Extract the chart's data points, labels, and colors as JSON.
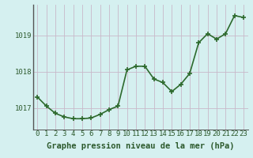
{
  "hours": [
    0,
    1,
    2,
    3,
    4,
    5,
    6,
    7,
    8,
    9,
    10,
    11,
    12,
    13,
    14,
    15,
    16,
    17,
    18,
    19,
    20,
    21,
    22,
    23
  ],
  "pressure": [
    1017.3,
    1017.05,
    1016.85,
    1016.75,
    1016.7,
    1016.7,
    1016.72,
    1016.82,
    1016.95,
    1017.05,
    1018.05,
    1018.15,
    1018.15,
    1017.8,
    1017.7,
    1017.45,
    1017.65,
    1017.95,
    1018.8,
    1019.05,
    1018.9,
    1019.05,
    1019.55,
    1019.5
  ],
  "line_color": "#2d6a2d",
  "marker_color": "#2d6a2d",
  "bg_color": "#d5f0f0",
  "grid_color_v": "#c9b8c9",
  "grid_color_h": "#c9b8c9",
  "axis_color": "#555555",
  "xlabel": "Graphe pression niveau de la mer (hPa)",
  "ylim": [
    1016.4,
    1019.85
  ],
  "yticks": [
    1017,
    1018,
    1019
  ],
  "xticks": [
    0,
    1,
    2,
    3,
    4,
    5,
    6,
    7,
    8,
    9,
    10,
    11,
    12,
    13,
    14,
    15,
    16,
    17,
    18,
    19,
    20,
    21,
    22,
    23
  ],
  "xlabel_fontsize": 7.5,
  "tick_fontsize": 6.5,
  "line_width": 1.2,
  "marker_size": 4
}
